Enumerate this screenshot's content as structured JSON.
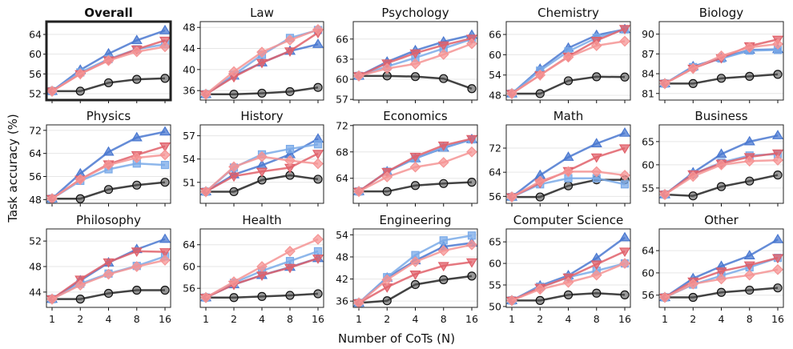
{
  "chart_data": {
    "type": "line",
    "xlabel": "Number of CoTs (N)",
    "ylabel": "Task accuracy (%)",
    "x": [
      1,
      2,
      4,
      8,
      16
    ],
    "x_tick_labels": [
      "1",
      "2",
      "4",
      "8",
      "16"
    ],
    "x_scale": "log2",
    "grid": "horizontal",
    "series_styles": [
      {
        "color": "#222222",
        "marker": "circle"
      },
      {
        "color": "#4a78d0",
        "marker": "triangle-up"
      },
      {
        "color": "#7aaae8",
        "marker": "square"
      },
      {
        "color": "#e0606a",
        "marker": "triangle-down"
      },
      {
        "color": "#f59494",
        "marker": "diamond"
      }
    ],
    "panels": [
      {
        "title": "Overall",
        "highlight": true,
        "yticks": [
          52,
          56,
          60,
          64
        ],
        "ylim": [
          50.7,
          66.6
        ],
        "series": [
          [
            52.5,
            52.5,
            54.2,
            54.9,
            55.1
          ],
          [
            52.5,
            56.8,
            60.1,
            62.8,
            64.8
          ],
          [
            52.5,
            56.3,
            59,
            61,
            62
          ],
          [
            52.5,
            56,
            58.8,
            61,
            62.8
          ],
          [
            52.5,
            56,
            58.7,
            60.5,
            61.5
          ]
        ]
      },
      {
        "title": "Law",
        "yticks": [
          36,
          40,
          44,
          48
        ],
        "ylim": [
          34.2,
          49.1
        ],
        "series": [
          [
            35.3,
            35.3,
            35.5,
            35.8,
            36.6
          ],
          [
            35.3,
            38.8,
            41.3,
            43.5,
            44.8
          ],
          [
            35.3,
            39,
            42.8,
            46,
            47.5
          ],
          [
            35.3,
            38.6,
            41.3,
            43.5,
            47
          ],
          [
            35.3,
            39.6,
            43.3,
            45.6,
            47.6
          ]
        ]
      },
      {
        "title": "Psychology",
        "yticks": [
          57,
          60,
          63,
          66
        ],
        "ylim": [
          56.9,
          68.6
        ],
        "series": [
          [
            60.5,
            60.5,
            60.4,
            60.1,
            58.6
          ],
          [
            60.5,
            62.6,
            64.3,
            65.6,
            66.6
          ],
          [
            60.5,
            61.9,
            63.2,
            64.6,
            66
          ],
          [
            60.5,
            62.4,
            63.9,
            65.1,
            66.1
          ],
          [
            60.5,
            61.6,
            62.3,
            63.7,
            65.3
          ]
        ]
      },
      {
        "title": "Chemistry",
        "yticks": [
          48,
          54,
          60,
          66
        ],
        "ylim": [
          46.6,
          69.8
        ],
        "series": [
          [
            48.5,
            48.5,
            52.3,
            53.5,
            53.4
          ],
          [
            48.5,
            55.8,
            62,
            65.8,
            67.5
          ],
          [
            48.5,
            55.3,
            61,
            65,
            67.5
          ],
          [
            48.5,
            54,
            59.5,
            64.2,
            67.7
          ],
          [
            48.5,
            54,
            59.3,
            62.7,
            64
          ]
        ]
      },
      {
        "title": "Biology",
        "yticks": [
          81,
          84,
          87,
          90
        ],
        "ylim": [
          80.0,
          91.9
        ],
        "series": [
          [
            82.5,
            82.5,
            83.3,
            83.6,
            83.9
          ],
          [
            82.5,
            85.1,
            86.4,
            87.6,
            87.7
          ],
          [
            82.5,
            85,
            86.3,
            87.5,
            87.6
          ],
          [
            82.5,
            84.8,
            86.4,
            88.2,
            89.2
          ],
          [
            82.5,
            84.8,
            86.7,
            88,
            88.5
          ]
        ]
      },
      {
        "title": "Physics",
        "yticks": [
          48,
          56,
          64,
          72
        ],
        "ylim": [
          46.7,
          73.9
        ],
        "series": [
          [
            48.3,
            48.3,
            51.5,
            53,
            54
          ],
          [
            48.3,
            57,
            64.5,
            69.5,
            71.5
          ],
          [
            48.3,
            54.5,
            58.5,
            60.5,
            60
          ],
          [
            48.3,
            55,
            60.3,
            63.5,
            66.5
          ],
          [
            48.3,
            55,
            60,
            62.5,
            63.5
          ]
        ]
      },
      {
        "title": "History",
        "yticks": [
          51,
          54,
          57
        ],
        "ylim": [
          48.3,
          58.4
        ],
        "series": [
          [
            49.8,
            49.8,
            51.3,
            51.9,
            51.4
          ],
          [
            49.8,
            52,
            53.2,
            54.6,
            56.6
          ],
          [
            49.8,
            52.9,
            54.6,
            55.3,
            55.9
          ],
          [
            49.8,
            51.8,
            52.4,
            52.9,
            54.7
          ],
          [
            49.8,
            53,
            54.3,
            53.8,
            53.4
          ]
        ]
      },
      {
        "title": "Economics",
        "yticks": [
          64,
          68,
          72
        ],
        "ylim": [
          60.2,
          72.1
        ],
        "series": [
          [
            62,
            62,
            62.9,
            63.2,
            63.4
          ],
          [
            62,
            65,
            67,
            68.6,
            69.9
          ],
          [
            62,
            65,
            67,
            68.7,
            69.9
          ],
          [
            62,
            65,
            67.3,
            69,
            70
          ],
          [
            62,
            64.2,
            65.7,
            66.4,
            68
          ]
        ]
      },
      {
        "title": "Math",
        "yticks": [
          56,
          64,
          72
        ],
        "ylim": [
          53.7,
          79.7
        ],
        "series": [
          [
            55.8,
            55.8,
            59.5,
            61.5,
            61.5
          ],
          [
            55.8,
            63,
            69,
            73.5,
            77
          ],
          [
            55.8,
            60,
            62,
            62,
            60
          ],
          [
            55.8,
            60.5,
            64.5,
            69,
            72
          ],
          [
            55.8,
            61,
            64.2,
            64.2,
            63
          ]
        ]
      },
      {
        "title": "Business",
        "yticks": [
          55,
          60,
          65
        ],
        "ylim": [
          51.7,
          68.6
        ],
        "series": [
          [
            53.6,
            53.3,
            55.3,
            56.5,
            57.8
          ],
          [
            53.6,
            58.3,
            62.3,
            65,
            66.3
          ],
          [
            53.6,
            58,
            60.5,
            62,
            62.3
          ],
          [
            53.6,
            58,
            60.3,
            61.7,
            62.5
          ],
          [
            53.6,
            57.5,
            60,
            60.8,
            61
          ]
        ]
      },
      {
        "title": "Philosophy",
        "yticks": [
          44,
          48,
          52
        ],
        "ylim": [
          41.6,
          53.9
        ],
        "series": [
          [
            42.9,
            42.9,
            43.8,
            44.3,
            44.3
          ],
          [
            42.9,
            45.8,
            48.6,
            50.7,
            52.3
          ],
          [
            42.9,
            45.3,
            46.9,
            48.1,
            49.6
          ],
          [
            42.9,
            46,
            48.7,
            50.4,
            50.3
          ],
          [
            42.9,
            45.1,
            46.8,
            48,
            49
          ]
        ]
      },
      {
        "title": "Health",
        "yticks": [
          56,
          60,
          64
        ],
        "ylim": [
          52.5,
          66.9
        ],
        "series": [
          [
            54.3,
            54.3,
            54.5,
            54.7,
            55
          ],
          [
            54.3,
            56.7,
            58.4,
            59.9,
            61.5
          ],
          [
            54.3,
            57,
            59.2,
            61,
            62.8
          ],
          [
            54.3,
            56.7,
            58.4,
            59.8,
            61.5
          ],
          [
            54.3,
            57.2,
            60,
            62.8,
            65
          ]
        ]
      },
      {
        "title": "Engineering",
        "yticks": [
          36,
          42,
          48,
          54
        ],
        "ylim": [
          34.3,
          55.6
        ],
        "series": [
          [
            35.5,
            36.1,
            40.5,
            41.8,
            42.8
          ],
          [
            35.5,
            42.3,
            47,
            50.8,
            51.8
          ],
          [
            35.5,
            42.5,
            48.5,
            52.5,
            53.8
          ],
          [
            35.5,
            39.8,
            43.3,
            45.6,
            46.6
          ],
          [
            35.5,
            41.8,
            46.7,
            49.7,
            51.3
          ]
        ]
      },
      {
        "title": "Computer Science",
        "yticks": [
          50,
          55,
          60,
          65
        ],
        "ylim": [
          49.8,
          68
        ],
        "series": [
          [
            51.4,
            51.4,
            52.7,
            53.1,
            52.7
          ],
          [
            51.4,
            54.8,
            57.2,
            61.2,
            66
          ],
          [
            51.4,
            54.6,
            56.8,
            58.3,
            60
          ],
          [
            51.4,
            54.4,
            56.8,
            59.8,
            62.8
          ],
          [
            51.4,
            54,
            55.6,
            57.3,
            60
          ]
        ]
      },
      {
        "title": "Other",
        "yticks": [
          56,
          60,
          64
        ],
        "ylim": [
          53.8,
          67.9
        ],
        "series": [
          [
            55.6,
            55.6,
            56.5,
            56.9,
            57.3
          ],
          [
            55.6,
            59,
            61.2,
            63.1,
            66
          ],
          [
            55.6,
            57.9,
            59.5,
            61,
            62.7
          ],
          [
            55.6,
            58.5,
            60.3,
            61.4,
            62.7
          ],
          [
            55.6,
            58,
            58.9,
            59.6,
            60.6
          ]
        ]
      }
    ]
  }
}
